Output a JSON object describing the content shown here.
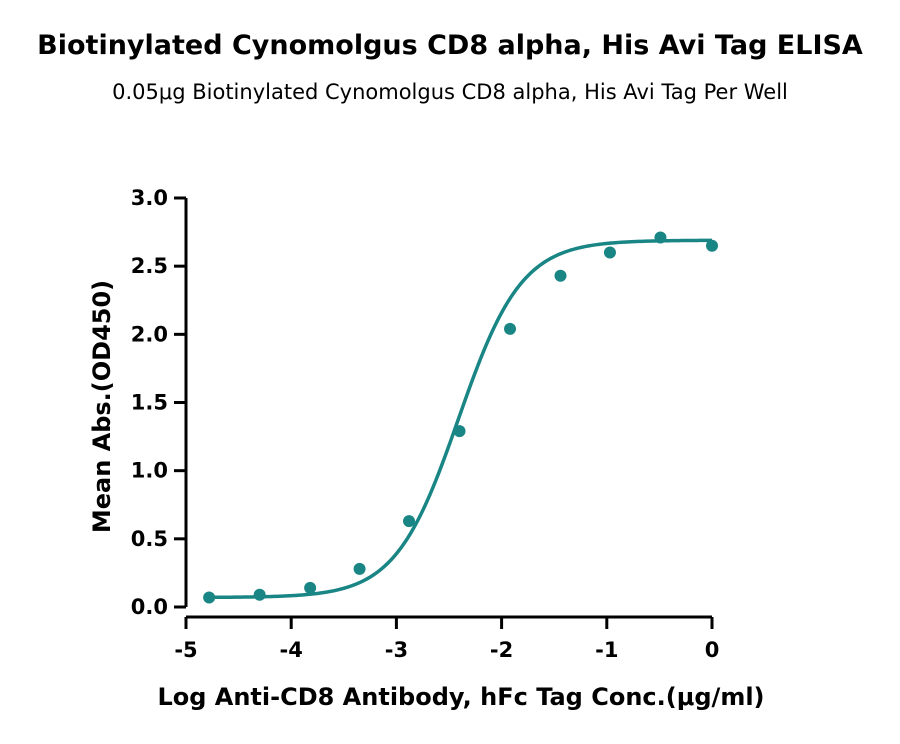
{
  "chart_data": {
    "type": "scatter",
    "title": "Biotinylated Cynomolgus CD8 alpha, His Avi Tag ELISA",
    "subtitle": "0.05μg Biotinylated Cynomolgus CD8 alpha, His Avi Tag Per Well",
    "xlabel": "Log Anti-CD8 Antibody, hFc Tag Conc.(μg/ml)",
    "ylabel": "Mean Abs.(OD450)",
    "xlim": [
      -5,
      0
    ],
    "ylim": [
      0,
      3.0
    ],
    "xticks": [
      "-5",
      "-4",
      "-3",
      "-2",
      "-1",
      "0"
    ],
    "yticks": [
      "0.0",
      "0.5",
      "1.0",
      "1.5",
      "2.0",
      "2.5",
      "3.0"
    ],
    "grid": false,
    "series": [
      {
        "color": "#1a8585",
        "x": [
          -4.78,
          -4.3,
          -3.82,
          -3.35,
          -2.88,
          -2.4,
          -1.92,
          -1.44,
          -0.97,
          -0.49,
          0.0
        ],
        "y": [
          0.07,
          0.09,
          0.14,
          0.28,
          0.63,
          1.29,
          2.04,
          2.43,
          2.6,
          2.71,
          2.65
        ]
      }
    ],
    "fit": {
      "model": "4PL sigmoid",
      "bottom": 0.07,
      "top": 2.69,
      "logEC50": -2.41,
      "hill": 1.45
    }
  }
}
